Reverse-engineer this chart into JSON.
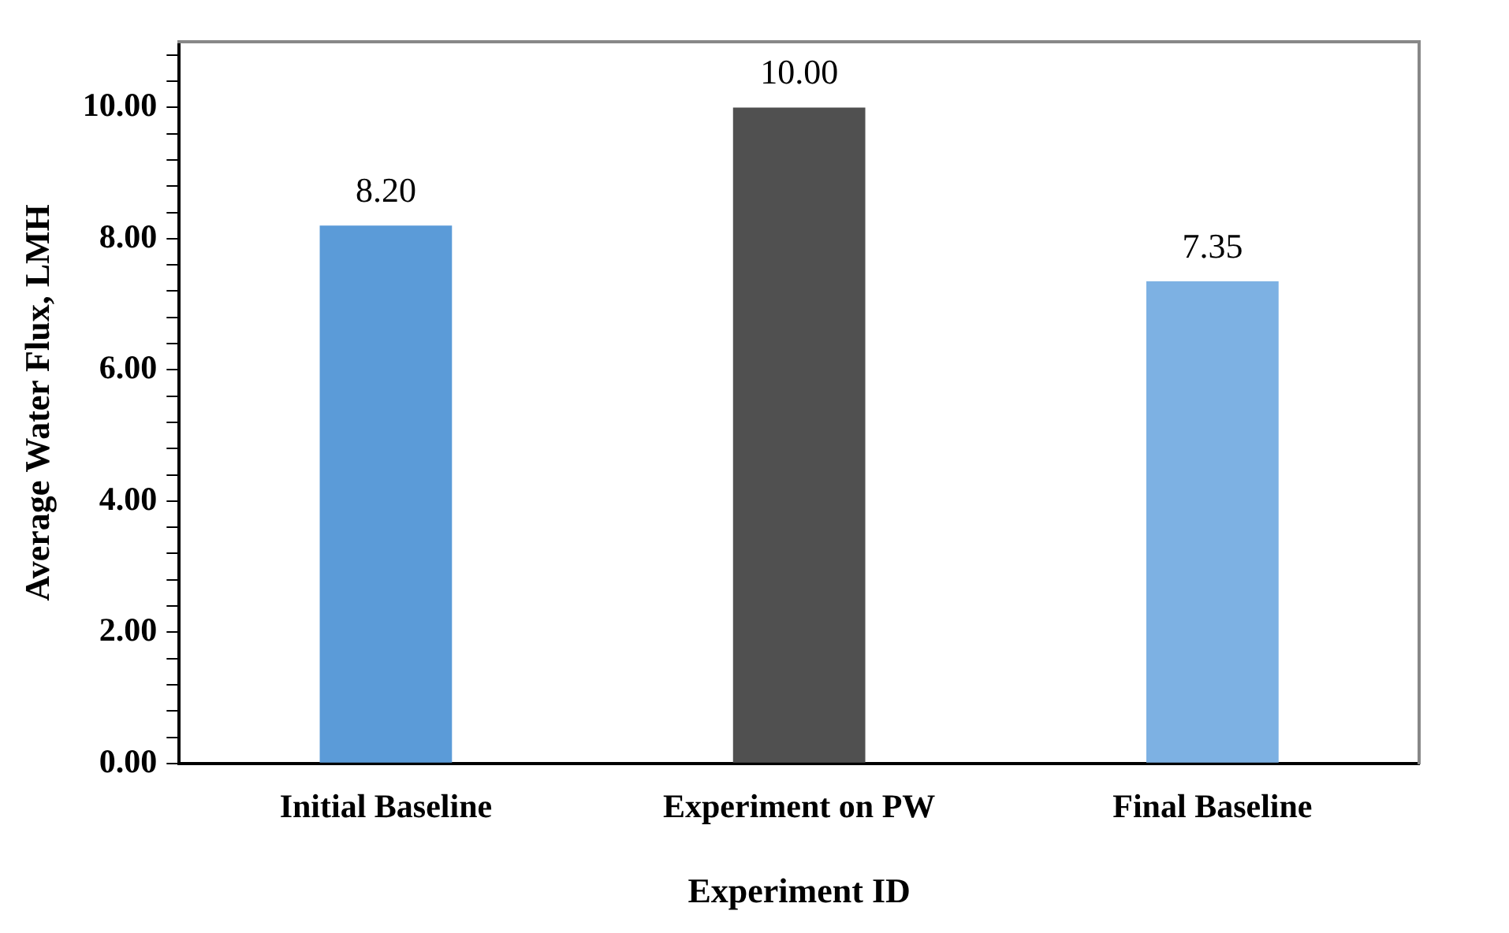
{
  "chart_data": {
    "type": "bar",
    "xlabel": "Experiment ID",
    "ylabel": "Average Water Flux, LMH",
    "categories": [
      "Initial Baseline",
      "Experiment on PW",
      "Final Baseline"
    ],
    "values": [
      8.2,
      10,
      7.35
    ],
    "colors": [
      "#5b9bd8",
      "#505050",
      "#7db1e3"
    ],
    "value_labels": [
      "8.20",
      "10.00",
      "7.35"
    ],
    "ylim": [
      0,
      11
    ],
    "yticks": [
      {
        "value": 0,
        "label": "0.00"
      },
      {
        "value": 0.4,
        "label": null
      },
      {
        "value": 0.8,
        "label": null
      },
      {
        "value": 1.2,
        "label": null
      },
      {
        "value": 1.6,
        "label": null
      },
      {
        "value": 2,
        "label": "2.00"
      },
      {
        "value": 2.4,
        "label": null
      },
      {
        "value": 2.8,
        "label": null
      },
      {
        "value": 3.2,
        "label": null
      },
      {
        "value": 3.6,
        "label": null
      },
      {
        "value": 4,
        "label": "4.00"
      },
      {
        "value": 4.4,
        "label": null
      },
      {
        "value": 4.8,
        "label": null
      },
      {
        "value": 5.2,
        "label": null
      },
      {
        "value": 5.6,
        "label": null
      },
      {
        "value": 6,
        "label": "6.00"
      },
      {
        "value": 6.4,
        "label": null
      },
      {
        "value": 6.8,
        "label": null
      },
      {
        "value": 7.2,
        "label": null
      },
      {
        "value": 7.6,
        "label": null
      },
      {
        "value": 8,
        "label": "8.00"
      },
      {
        "value": 8.4,
        "label": null
      },
      {
        "value": 8.8,
        "label": null
      },
      {
        "value": 9.2,
        "label": null
      },
      {
        "value": 9.6,
        "label": null
      },
      {
        "value": 10,
        "label": "10.00"
      },
      {
        "value": 10.4,
        "label": null
      },
      {
        "value": 10.8,
        "label": null
      }
    ],
    "grid": false,
    "legend": false
  }
}
